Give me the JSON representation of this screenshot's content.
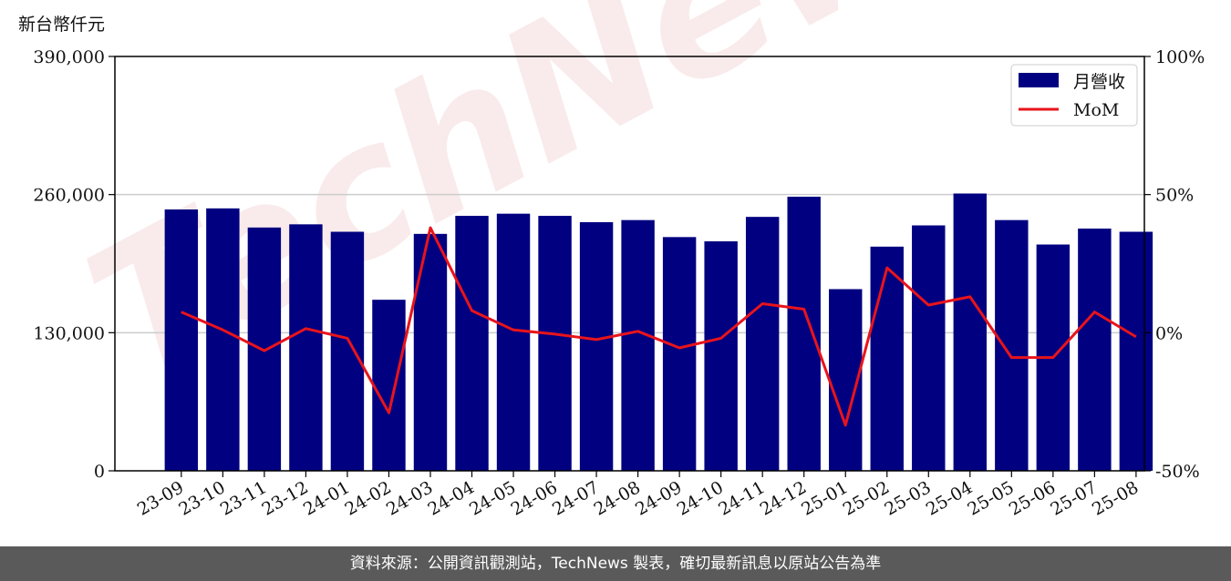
{
  "unit_label": "新台幣仟元",
  "footer_text": "資料來源：公開資訊觀測站，TechNews 製表，確切最新訊息以原站公告為準",
  "watermark_text": "TechNews",
  "colors": {
    "bar": "#000080",
    "line": "#e8141c",
    "footer_bg": "#5a5a5a",
    "grid": "#cccccc"
  },
  "chart_data": {
    "type": "bar",
    "categories": [
      "23-09",
      "23-10",
      "23-11",
      "23-12",
      "24-01",
      "24-02",
      "24-03",
      "24-04",
      "24-05",
      "24-06",
      "24-07",
      "24-08",
      "24-09",
      "24-10",
      "24-11",
      "24-12",
      "25-01",
      "25-02",
      "25-03",
      "25-04",
      "25-05",
      "25-06",
      "25-07",
      "25-08"
    ],
    "series": [
      {
        "name": "月營收",
        "type": "bar",
        "axis": "left",
        "values": [
          246000,
          247000,
          229000,
          232000,
          225000,
          161000,
          223000,
          240000,
          242000,
          240000,
          234000,
          236000,
          220000,
          216000,
          239000,
          258000,
          171000,
          211000,
          231000,
          261000,
          236000,
          213000,
          228000,
          225000
        ]
      },
      {
        "name": "MoM",
        "type": "line",
        "axis": "right",
        "values": [
          7.5,
          1.0,
          -6.5,
          1.5,
          -2.0,
          -29.0,
          38.0,
          8.0,
          1.0,
          -0.5,
          -2.5,
          0.5,
          -5.5,
          -2.0,
          10.5,
          8.5,
          -33.5,
          23.5,
          10.0,
          13.0,
          -9.0,
          -9.0,
          7.5,
          -1.5
        ]
      }
    ],
    "y_left": {
      "lim": [
        0,
        390000
      ],
      "ticks": [
        "0",
        "130,000",
        "260,000",
        "390,000"
      ],
      "tick_values": [
        0,
        130000,
        260000,
        390000
      ]
    },
    "y_right": {
      "lim": [
        -50,
        100
      ],
      "ticks": [
        "-50%",
        "0%",
        "50%",
        "100%"
      ],
      "tick_values": [
        -50,
        0,
        50,
        100
      ]
    },
    "grid": "horizontal",
    "legend": "top-right"
  }
}
